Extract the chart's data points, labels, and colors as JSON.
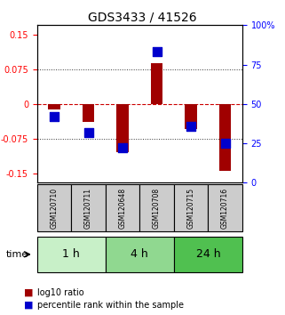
{
  "title": "GDS3433 / 41526",
  "samples": [
    "GSM120710",
    "GSM120711",
    "GSM120648",
    "GSM120708",
    "GSM120715",
    "GSM120716"
  ],
  "log10_ratio": [
    -0.012,
    -0.038,
    -0.105,
    0.088,
    -0.055,
    -0.145
  ],
  "percentile_rank": [
    42,
    32,
    22,
    83,
    36,
    25
  ],
  "time_groups": [
    {
      "label": "1 h",
      "cols": [
        0,
        1
      ],
      "color": "#c8f0c8"
    },
    {
      "label": "4 h",
      "cols": [
        2,
        3
      ],
      "color": "#90d890"
    },
    {
      "label": "24 h",
      "cols": [
        4,
        5
      ],
      "color": "#50c050"
    }
  ],
  "ylim_left": [
    -0.17,
    0.17
  ],
  "ylim_right": [
    0,
    100
  ],
  "yticks_left": [
    -0.15,
    -0.075,
    0,
    0.075,
    0.15
  ],
  "yticks_right": [
    0,
    25,
    50,
    75,
    100
  ],
  "ytick_labels_left": [
    "-0.15",
    "-0.075",
    "0",
    "0.075",
    "0.15"
  ],
  "ytick_labels_right": [
    "0",
    "25",
    "50",
    "75",
    "100%"
  ],
  "bar_color": "#a00000",
  "dot_color": "#0000cc",
  "hline_color": "#cc0000",
  "grid_color": "#333333",
  "sample_box_color": "#cccccc",
  "legend_log10": "log10 ratio",
  "legend_pct": "percentile rank within the sample",
  "time_label": "time"
}
